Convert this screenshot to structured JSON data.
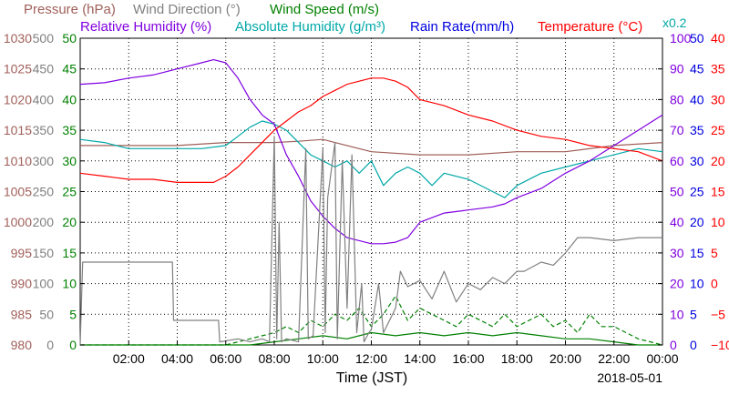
{
  "chart_data": {
    "type": "line",
    "date": "2018-05-01",
    "xlabel": "Time (JST)",
    "x_ticks": [
      "02:00",
      "04:00",
      "06:00",
      "08:00",
      "10:00",
      "12:00",
      "14:00",
      "16:00",
      "18:00",
      "20:00",
      "22:00",
      "00:00"
    ],
    "x_tick_hours": [
      2,
      4,
      6,
      8,
      10,
      12,
      14,
      16,
      18,
      20,
      22,
      24
    ],
    "xlim_hours": [
      0,
      24
    ],
    "grid": true,
    "legend": [
      {
        "label": "Pressure (hPa)",
        "color": "#a0605a"
      },
      {
        "label": "Wind Direction (°)",
        "color": "#808080"
      },
      {
        "label": "Wind Speed (m/s)",
        "color": "#008000"
      },
      {
        "label": "Relative Humidity (%)",
        "color": "#8000e0"
      },
      {
        "label": "Absolute Humidity (g/m³)",
        "color": "#00a8a8"
      },
      {
        "label": "Rain Rate(mm/h)",
        "color": "#0000e0"
      },
      {
        "label": "Temperature (°C)",
        "color": "#ff0000"
      }
    ],
    "rain_scale_note": "x0.2",
    "axes": [
      {
        "name": "pressure",
        "side": "left",
        "order": 1,
        "color": "#a0605a",
        "ylim": [
          980,
          1030
        ],
        "ticks": [
          980,
          985,
          990,
          995,
          1000,
          1005,
          1010,
          1015,
          1020,
          1025,
          1030
        ]
      },
      {
        "name": "wind_direction",
        "side": "left",
        "order": 2,
        "color": "#808080",
        "ylim": [
          0,
          500
        ],
        "ticks": [
          0,
          50,
          100,
          150,
          200,
          250,
          300,
          350,
          400,
          450,
          500
        ]
      },
      {
        "name": "wind_speed",
        "side": "left",
        "order": 3,
        "color": "#008000",
        "ylim": [
          0,
          50
        ],
        "ticks": [
          0,
          5,
          10,
          15,
          20,
          25,
          30,
          35,
          40,
          45,
          50
        ]
      },
      {
        "name": "relative_humidity",
        "side": "right",
        "order": 1,
        "color": "#8000e0",
        "ylim": [
          0,
          100
        ],
        "ticks": [
          0,
          10,
          20,
          30,
          40,
          50,
          60,
          70,
          80,
          90,
          100
        ]
      },
      {
        "name": "rain_rate",
        "side": "right",
        "order": 2,
        "color": "#0000e0",
        "ylim": [
          0,
          50
        ],
        "ticks": [
          0,
          5,
          10,
          15,
          20,
          25,
          30,
          35,
          40,
          45,
          50
        ]
      },
      {
        "name": "temperature",
        "side": "right",
        "order": 3,
        "color": "#ff0000",
        "ylim": [
          -10,
          40
        ],
        "ticks": [
          -10,
          -5,
          0,
          5,
          10,
          15,
          20,
          25,
          30,
          35,
          40
        ]
      }
    ],
    "series": [
      {
        "name": "Pressure (hPa)",
        "axis": "pressure",
        "color": "#a0605a",
        "dash": "",
        "x": [
          0,
          2,
          4,
          6,
          8,
          9,
          10,
          12,
          14,
          16,
          18,
          20,
          22,
          24
        ],
        "y": [
          1012.5,
          1012.5,
          1012.5,
          1013,
          1013,
          1013.2,
          1013.5,
          1011.5,
          1011,
          1011,
          1011.5,
          1011.5,
          1012.5,
          1013
        ]
      },
      {
        "name": "Absolute Humidity",
        "axis": "wind_speed",
        "color": "#00a8a8",
        "dash": "",
        "x": [
          0,
          1,
          2,
          3,
          4,
          5,
          6,
          6.5,
          7,
          7.5,
          8,
          8.5,
          9,
          9.5,
          10,
          10.5,
          11,
          11.5,
          12,
          12.5,
          13,
          13.5,
          14,
          14.5,
          15,
          16,
          17,
          17.5,
          18,
          19,
          20,
          21,
          22,
          23,
          24
        ],
        "y": [
          33.5,
          33,
          32,
          32,
          32,
          32,
          32.5,
          34,
          35.5,
          36.5,
          36,
          35,
          33,
          31,
          30,
          29,
          30,
          28,
          30,
          26,
          28,
          29,
          28,
          26,
          28,
          27,
          25,
          24,
          26,
          28,
          29,
          30,
          31,
          32,
          31.5
        ]
      },
      {
        "name": "Relative Humidity",
        "axis": "relative_humidity",
        "color": "#8000e0",
        "dash": "",
        "x": [
          0,
          1,
          2,
          3,
          4,
          5,
          5.5,
          6,
          6.5,
          7,
          7.5,
          8,
          8.5,
          9,
          9.5,
          10,
          10.5,
          11,
          11.5,
          12,
          12.5,
          13,
          13.5,
          14,
          15,
          16,
          17,
          17.5,
          18,
          19,
          20,
          21,
          22,
          23,
          24
        ],
        "y": [
          85,
          85.5,
          87,
          88,
          90,
          92,
          93,
          92,
          87,
          80,
          75,
          72,
          62,
          55,
          47,
          42,
          38,
          35,
          34,
          33,
          33,
          33.5,
          35,
          40,
          43,
          44,
          45,
          46,
          48,
          51,
          56,
          60,
          65,
          70,
          75
        ]
      },
      {
        "name": "Temperature",
        "axis": "temperature",
        "color": "#ff0000",
        "dash": "",
        "x": [
          0,
          1,
          2,
          3,
          4,
          5,
          5.5,
          6,
          6.5,
          7,
          7.5,
          8,
          8.5,
          9,
          9.5,
          10,
          10.5,
          11,
          11.5,
          12,
          12.5,
          13,
          13.5,
          14,
          15,
          16,
          17,
          18,
          19,
          20,
          21,
          22,
          23,
          24
        ],
        "y": [
          18,
          17.5,
          17,
          17,
          16.5,
          16.5,
          16.5,
          17.5,
          19,
          21,
          23,
          25,
          26.5,
          28,
          29,
          30.5,
          31.5,
          32.5,
          33,
          33.5,
          33.5,
          33,
          32,
          30,
          29,
          27.5,
          26.5,
          25,
          24,
          23.5,
          22.5,
          22,
          21.5,
          20
        ]
      },
      {
        "name": "Wind Speed",
        "axis": "wind_speed",
        "color": "#008000",
        "dash": "5,3",
        "x": [
          0,
          6,
          7,
          8,
          8.5,
          9,
          9.5,
          10,
          10.5,
          11,
          11.5,
          12,
          12.5,
          13,
          13.5,
          14,
          14.5,
          15,
          15.5,
          16,
          16.5,
          17,
          17.5,
          18,
          18.5,
          19,
          19.5,
          20,
          20.5,
          21,
          21.5,
          22,
          22.5,
          23,
          24
        ],
        "y": [
          0,
          0,
          1,
          2,
          3,
          2,
          4,
          3,
          5,
          4,
          6,
          3,
          5,
          8,
          4,
          6,
          5,
          4,
          3,
          5,
          4,
          3,
          5,
          3,
          4,
          5,
          3,
          4,
          2,
          5,
          3,
          3,
          2,
          1,
          0
        ]
      },
      {
        "name": "Wind Speed baseline",
        "axis": "wind_speed",
        "color": "#008000",
        "dash": "",
        "x": [
          0,
          7,
          8,
          9,
          10,
          11,
          12,
          13,
          14,
          15,
          16,
          17,
          18,
          19,
          20,
          21,
          22,
          23,
          24
        ],
        "y": [
          0,
          0,
          0.5,
          1,
          1.5,
          1,
          2,
          1.5,
          2,
          1.5,
          2,
          1.5,
          2,
          1.5,
          1,
          1,
          0.5,
          0,
          0
        ]
      },
      {
        "name": "Wind Direction",
        "axis": "wind_direction",
        "color": "#808080",
        "dash": "",
        "x": [
          0,
          0.1,
          3.8,
          3.85,
          4.2,
          5,
          5.7,
          5.75,
          6.5,
          7,
          7.5,
          7.8,
          8,
          8.1,
          8.2,
          8.3,
          8.5,
          9,
          9.3,
          9.4,
          9.6,
          10,
          10.1,
          10.2,
          10.5,
          10.6,
          10.8,
          11,
          11.2,
          11.4,
          11.6,
          11.7,
          11.9,
          12,
          12.3,
          12.5,
          13,
          13.2,
          13.5,
          14,
          14.5,
          15,
          15.5,
          16,
          16.5,
          17,
          17.5,
          18,
          18.3,
          19,
          19.5,
          20,
          20.5,
          21,
          22,
          23,
          24
        ],
        "y": [
          0,
          135,
          135,
          40,
          40,
          40,
          40,
          5,
          10,
          5,
          10,
          5,
          340,
          10,
          200,
          5,
          10,
          5,
          320,
          10,
          15,
          320,
          20,
          240,
          330,
          10,
          300,
          60,
          310,
          20,
          100,
          5,
          20,
          25,
          100,
          20,
          60,
          120,
          95,
          105,
          75,
          120,
          70,
          100,
          90,
          110,
          100,
          120,
          120,
          135,
          130,
          150,
          175,
          175,
          170,
          175,
          175
        ]
      }
    ]
  }
}
